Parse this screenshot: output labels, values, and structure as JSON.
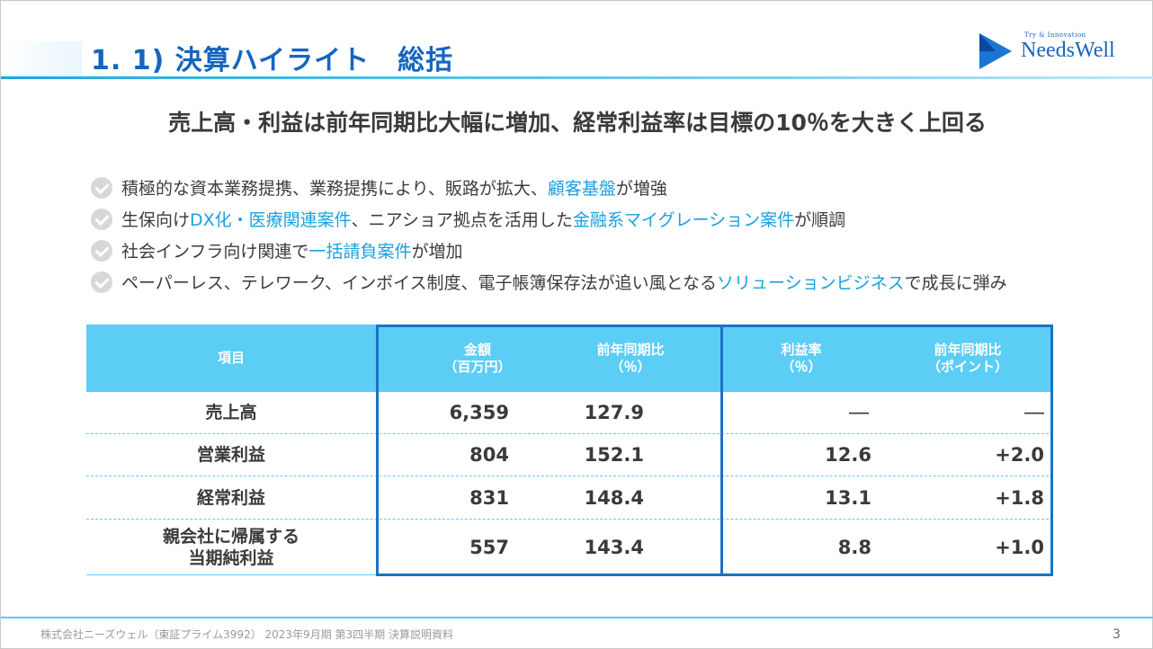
{
  "header": {
    "title": "1. 1) 決算ハイライト　総括",
    "logo_tagline": "Try & Innovation",
    "logo_name": "NeedsWell"
  },
  "headline": "売上高・利益は前年同期比大幅に増加、経常利益率は目標の10％を大きく上回る",
  "bullets": [
    {
      "parts": [
        {
          "t": "積極的な資本業務提携、業務提携により、販路が拡大、",
          "h": false
        },
        {
          "t": "顧客基盤",
          "h": true
        },
        {
          "t": "が増強",
          "h": false
        }
      ]
    },
    {
      "parts": [
        {
          "t": "生保向け",
          "h": false
        },
        {
          "t": "DX化・医療関連案件",
          "h": true
        },
        {
          "t": "、ニアショア拠点を活用した",
          "h": false
        },
        {
          "t": "金融系マイグレーション案件",
          "h": true
        },
        {
          "t": "が順調",
          "h": false
        }
      ]
    },
    {
      "parts": [
        {
          "t": "社会インフラ向け関連で",
          "h": false
        },
        {
          "t": "一括請負案件",
          "h": true
        },
        {
          "t": "が増加",
          "h": false
        }
      ]
    },
    {
      "parts": [
        {
          "t": "ペーパーレス、テレワーク、インボイス制度、電子帳簿保存法が追い風となる",
          "h": false
        },
        {
          "t": "ソリューションビジネス",
          "h": true
        },
        {
          "t": "で成長に弾み",
          "h": false
        }
      ]
    }
  ],
  "table": {
    "headers": {
      "item": "項目",
      "amount": "金額\n（百万円）",
      "yoy": "前年同期比\n（％）",
      "margin": "利益率\n（％）",
      "margin_yoy": "前年同期比\n（ポイント）"
    },
    "rows": [
      {
        "label": "売上高",
        "amount": "6,359",
        "yoy": "127.9",
        "margin": "―",
        "margin_yoy": "―"
      },
      {
        "label": "営業利益",
        "amount": "804",
        "yoy": "152.1",
        "margin": "12.6",
        "margin_yoy": "+2.0"
      },
      {
        "label": "経常利益",
        "amount": "831",
        "yoy": "148.4",
        "margin": "13.1",
        "margin_yoy": "+1.8"
      },
      {
        "label": "親会社に帰属する\n当期純利益",
        "amount": "557",
        "yoy": "143.4",
        "margin": "8.8",
        "margin_yoy": "+1.0"
      }
    ]
  },
  "footer": {
    "text": "株式会社ニーズウェル（東証プライム3992） 2023年9月期 第3四半期 決算説明資料",
    "page": "3"
  },
  "colors": {
    "title": "#1565c0",
    "highlight": "#1aa0e0",
    "table_header": "#5ccdf5",
    "box_border": "#1a73c4"
  }
}
